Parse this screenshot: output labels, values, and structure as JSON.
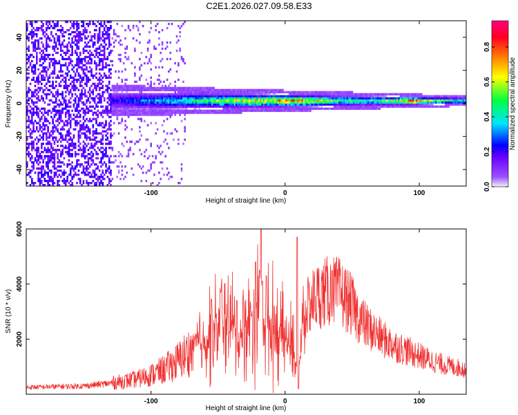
{
  "page_title": "C2E1.2026.027.09.58.E33",
  "chart_data": [
    {
      "type": "heatmap",
      "title": "C2E1.2026.027.09.58.E33",
      "xlabel": "Height of straight line (km)",
      "ylabel": "Frequency (Hz)",
      "xlim": [
        -193,
        135
      ],
      "ylim": [
        -50,
        50
      ],
      "x_ticks": [
        -100,
        0,
        100
      ],
      "x_tick_labels": [
        "-100",
        "0",
        "100"
      ],
      "y_ticks": [
        -40,
        -20,
        0,
        20,
        40
      ],
      "y_tick_labels": [
        "-40",
        "-20",
        "0",
        "20",
        "40"
      ],
      "colorbar": {
        "label": "Normalized spectral amplitude",
        "range": [
          0,
          0.95
        ],
        "ticks": [
          0,
          0.2,
          0.4,
          0.6,
          0.8
        ],
        "tick_labels": [
          "0.0",
          "0.2",
          "0.4",
          "0.6",
          "0.8"
        ],
        "colormap": "rainbow",
        "colors": [
          "#f5f0fb",
          "#6a00ff",
          "#0000ff",
          "#00e5ff",
          "#00ff00",
          "#ffff00",
          "#ff7f00",
          "#ff0033",
          "#ff0080"
        ]
      },
      "signal_band": {
        "x_start": -130,
        "center_frequency_hz": 1,
        "halfwidth_hz_start": 6,
        "halfwidth_hz_end": 2,
        "amplitude_profile_x": [
          -130,
          -110,
          -90,
          -70,
          -50,
          -30,
          -10,
          0,
          20,
          40,
          60,
          80,
          95,
          110,
          135
        ],
        "amplitude_profile_a": [
          0.25,
          0.32,
          0.4,
          0.5,
          0.6,
          0.68,
          0.78,
          0.85,
          0.75,
          0.55,
          0.55,
          0.62,
          0.95,
          0.6,
          0.5
        ]
      },
      "noise_region": {
        "x_start": -193,
        "x_end": -75,
        "dense_until_x": -130
      }
    },
    {
      "type": "line",
      "xlabel": "Height of straight line (km)",
      "ylabel": "SNR (10 * v/v)",
      "xlim": [
        -193,
        135
      ],
      "ylim": [
        0,
        6000
      ],
      "x_ticks": [
        -100,
        0,
        100
      ],
      "x_tick_labels": [
        "-100",
        "0",
        "100"
      ],
      "y_ticks": [
        2000,
        4000,
        6000
      ],
      "y_tick_labels": [
        "2000",
        "4000",
        "6000"
      ],
      "color": "#f03030",
      "series": [
        {
          "name": "SNR",
          "envelope_x": [
            -193,
            -150,
            -130,
            -110,
            -100,
            -90,
            -80,
            -70,
            -60,
            -50,
            -45,
            -40,
            -35,
            -30,
            -25,
            -20,
            -18,
            -17,
            -15,
            -12,
            -10,
            -5,
            0,
            5,
            8,
            9,
            10,
            11,
            12,
            15,
            20,
            25,
            30,
            35,
            40,
            45,
            50,
            55,
            60,
            70,
            80,
            90,
            100,
            110,
            120,
            135
          ],
          "envelope_y": [
            250,
            300,
            400,
            550,
            700,
            900,
            1200,
            1600,
            2000,
            2400,
            2800,
            2500,
            2000,
            2400,
            2800,
            3200,
            3300,
            3100,
            2600,
            2500,
            2600,
            2300,
            1900,
            1800,
            1200,
            600,
            800,
            1400,
            1800,
            3000,
            3400,
            3600,
            3700,
            3750,
            3700,
            3500,
            3200,
            2800,
            2500,
            2100,
            1800,
            1600,
            1400,
            1200,
            1050,
            900
          ],
          "spikes": [
            {
              "x": -55,
              "y": 3450
            },
            {
              "x": -48,
              "y": 3700
            },
            {
              "x": -36,
              "y": 3400
            },
            {
              "x": -22,
              "y": 4800
            },
            {
              "x": -19,
              "y": 4500
            },
            {
              "x": -18,
              "y": 6000
            },
            {
              "x": -17,
              "y": 4100
            },
            {
              "x": -14,
              "y": 4300
            },
            {
              "x": 9,
              "y": 5700
            },
            {
              "x": 10,
              "y": 200
            },
            {
              "x": 35,
              "y": 4500
            }
          ]
        }
      ]
    }
  ]
}
